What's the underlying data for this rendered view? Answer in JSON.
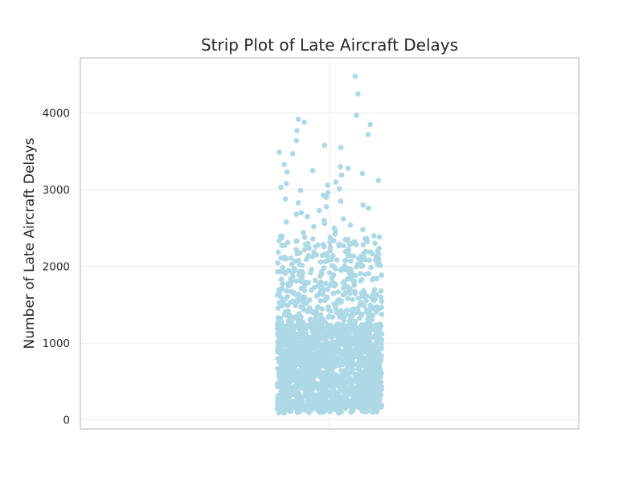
{
  "chart_data": {
    "type": "scatter",
    "title": "Strip Plot of Late Aircraft Delays",
    "xlabel": "",
    "ylabel": "Number of Late Aircraft Delays",
    "ylim": [
      -120,
      4720
    ],
    "yticks": [
      0,
      1000,
      2000,
      3000,
      4000
    ],
    "x": [],
    "y_distribution": {
      "min": 90,
      "max": 4480,
      "dense_range": [
        150,
        1200
      ],
      "notable_values": [
        4480,
        4250,
        3970,
        3920,
        3880,
        3850,
        3770,
        3720,
        3640,
        3580,
        3550,
        3490,
        3470,
        3330,
        3300,
        3280,
        3250,
        3230,
        3210,
        3190,
        3120,
        3100,
        3080,
        3060,
        3030,
        3010,
        2990,
        2960,
        2930,
        2900,
        2880,
        2850,
        2830,
        2800,
        2780,
        2760,
        2730,
        2700,
        2680,
        2650,
        2620,
        2600,
        2580,
        2560,
        2540,
        2520,
        2500,
        2480,
        2460,
        2440,
        2420,
        2400
      ]
    },
    "marker_color": "#add8e6",
    "grid": true,
    "legend": "none"
  }
}
